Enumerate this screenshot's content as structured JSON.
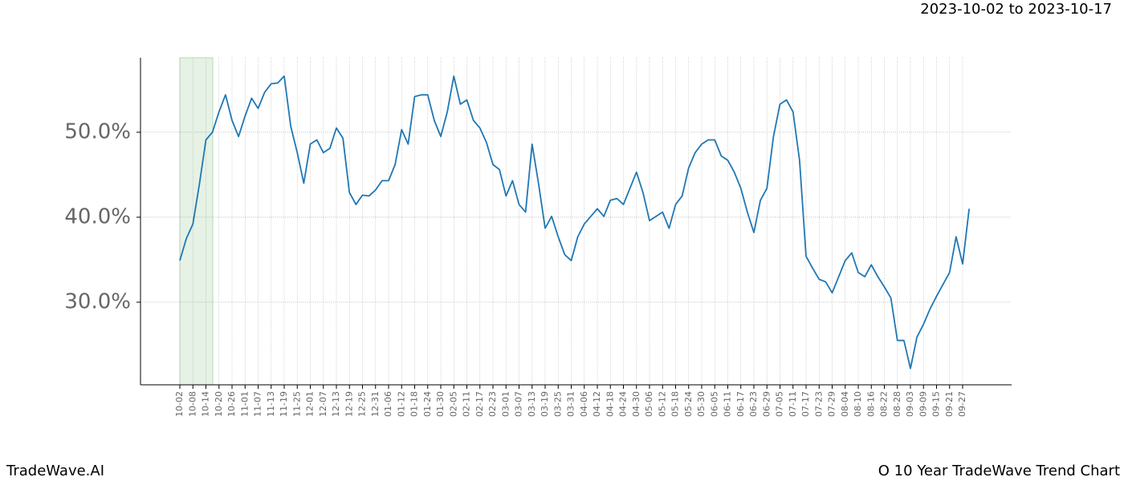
{
  "chart_data": {
    "type": "line",
    "title": "2023-10-02 to 2023-10-17",
    "footer_left": "TradeWave.AI",
    "footer_right": "O 10 Year TradeWave Trend Chart",
    "categories": [
      "10-02",
      null,
      "10-08",
      null,
      "10-14",
      null,
      "10-20",
      null,
      "10-26",
      null,
      "11-01",
      null,
      "11-07",
      null,
      "11-13",
      null,
      "11-19",
      null,
      "11-25",
      null,
      "12-01",
      null,
      "12-07",
      null,
      "12-13",
      null,
      "12-19",
      null,
      "12-25",
      null,
      "12-31",
      null,
      "01-06",
      null,
      "01-12",
      null,
      "01-18",
      null,
      "01-24",
      null,
      "01-30",
      null,
      "02-05",
      null,
      "02-11",
      null,
      "02-17",
      null,
      "02-23",
      null,
      "03-01",
      null,
      "03-07",
      null,
      "03-13",
      null,
      "03-19",
      null,
      "03-25",
      null,
      "03-31",
      null,
      "04-06",
      null,
      "04-12",
      null,
      "04-18",
      null,
      "04-24",
      null,
      "04-30",
      null,
      "05-06",
      null,
      "05-12",
      null,
      "05-18",
      null,
      "05-24",
      null,
      "05-30",
      null,
      "06-05",
      null,
      "06-11",
      null,
      "06-17",
      null,
      "06-23",
      null,
      "06-29",
      null,
      "07-05",
      null,
      "07-11",
      null,
      "07-17",
      null,
      "07-23",
      null,
      "07-29",
      null,
      "08-04",
      null,
      "08-10",
      null,
      "08-16",
      null,
      "08-22",
      null,
      "08-28",
      null,
      "09-03",
      null,
      "09-09",
      null,
      "09-15",
      null,
      "09-21",
      null,
      "09-27",
      null
    ],
    "values": [
      34.9,
      37.5,
      39.2,
      43.9,
      49.1,
      50.0,
      52.4,
      54.4,
      51.4,
      49.5,
      51.9,
      54.0,
      52.8,
      54.7,
      55.7,
      55.8,
      56.6,
      50.7,
      47.6,
      44.0,
      48.6,
      49.1,
      47.6,
      48.1,
      50.5,
      49.3,
      42.9,
      41.5,
      42.6,
      42.5,
      43.2,
      44.3,
      44.3,
      46.2,
      50.3,
      48.6,
      54.2,
      54.4,
      54.4,
      51.4,
      49.5,
      52.4,
      56.6,
      53.3,
      53.8,
      51.4,
      50.5,
      48.8,
      46.2,
      45.6,
      42.5,
      44.3,
      41.5,
      40.6,
      48.6,
      43.9,
      38.7,
      40.1,
      37.7,
      35.6,
      34.9,
      37.7,
      39.2,
      40.1,
      41.0,
      40.1,
      42.0,
      42.2,
      41.5,
      43.4,
      45.3,
      42.9,
      39.6,
      40.1,
      40.6,
      38.7,
      41.5,
      42.5,
      45.8,
      47.6,
      48.6,
      49.1,
      49.1,
      47.2,
      46.7,
      45.3,
      43.4,
      40.6,
      38.2,
      42.0,
      43.4,
      49.5,
      53.3,
      53.8,
      52.4,
      46.7,
      35.4,
      34.0,
      32.7,
      32.4,
      31.1,
      33.0,
      34.9,
      35.8,
      33.5,
      33.0,
      34.4,
      33.0,
      31.8,
      30.5,
      25.5,
      25.5,
      22.2,
      25.9,
      27.4,
      29.2,
      30.7,
      32.1,
      33.5,
      37.7,
      34.5,
      41.0
    ],
    "color": "#1f77b4",
    "ylim": [
      20.28,
      58.77
    ],
    "yticks": [
      {
        "value": 30,
        "label": "30.0%"
      },
      {
        "value": 40,
        "label": "40.0%"
      },
      {
        "value": 50,
        "label": "50.0%"
      }
    ],
    "grid": true
  }
}
